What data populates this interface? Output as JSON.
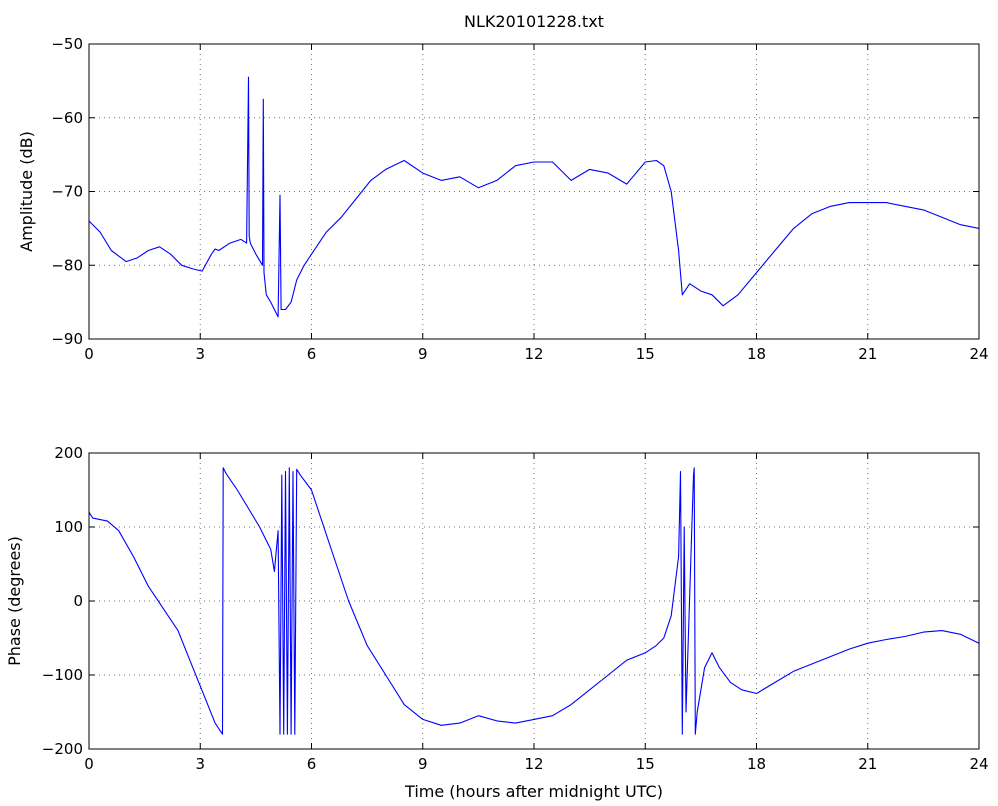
{
  "chart_data": [
    {
      "type": "line",
      "title": "NLK20101228.txt",
      "xlabel": "",
      "ylabel": "Amplitude (dB)",
      "xlim": [
        0,
        24
      ],
      "ylim": [
        -90,
        -50
      ],
      "xticks": [
        0,
        3,
        6,
        9,
        12,
        15,
        18,
        21,
        24
      ],
      "yticks": [
        -90,
        -80,
        -70,
        -60,
        -50
      ],
      "grid": true,
      "color": "#0000ff",
      "series": [
        {
          "name": "",
          "x": [
            0,
            0.3,
            0.6,
            1.0,
            1.3,
            1.6,
            1.9,
            2.2,
            2.5,
            2.8,
            3.05,
            3.3,
            3.4,
            3.5,
            3.8,
            4.1,
            4.25,
            4.3,
            4.32,
            4.35,
            4.5,
            4.68,
            4.7,
            4.72,
            4.78,
            4.9,
            5.0,
            5.1,
            5.15,
            5.18,
            5.3,
            5.45,
            5.6,
            5.8,
            6.0,
            6.4,
            6.8,
            7.2,
            7.6,
            8.0,
            8.5,
            9.0,
            9.5,
            10.0,
            10.5,
            11.0,
            11.5,
            12.0,
            12.5,
            13.0,
            13.5,
            14.0,
            14.5,
            15.0,
            15.3,
            15.5,
            15.7,
            15.9,
            16.0,
            16.2,
            16.5,
            16.8,
            17.1,
            17.5,
            18.0,
            18.5,
            19.0,
            19.5,
            20.0,
            20.5,
            21.0,
            21.5,
            22.0,
            22.5,
            23.0,
            23.5,
            24.0
          ],
          "y": [
            -74,
            -75.5,
            -78,
            -79.5,
            -79,
            -78,
            -77.5,
            -78.5,
            -80,
            -80.5,
            -80.8,
            -78.5,
            -77.8,
            -78,
            -77,
            -76.5,
            -77,
            -54.5,
            -76,
            -77,
            -78.5,
            -80,
            -57.5,
            -81,
            -84,
            -85,
            -86,
            -87,
            -70.5,
            -86,
            -86,
            -85,
            -82,
            -80,
            -78.5,
            -75.5,
            -73.5,
            -71,
            -68.5,
            -67,
            -65.8,
            -67.5,
            -68.5,
            -68,
            -69.5,
            -68.5,
            -66.5,
            -66,
            -66,
            -68.5,
            -67,
            -67.5,
            -69,
            -66,
            -65.8,
            -66.5,
            -70,
            -78,
            -84,
            -82.5,
            -83.5,
            -84,
            -85.5,
            -84,
            -81,
            -78,
            -75,
            -73,
            -72,
            -71.5,
            -71.5,
            -71.5,
            -72,
            -72.5,
            -73.5,
            -74.5,
            -75
          ]
        }
      ]
    },
    {
      "type": "line",
      "title": "",
      "xlabel": "Time (hours after midnight UTC)",
      "ylabel": "Phase (degrees)",
      "xlim": [
        0,
        24
      ],
      "ylim": [
        -200,
        200
      ],
      "xticks": [
        0,
        3,
        6,
        9,
        12,
        15,
        18,
        21,
        24
      ],
      "yticks": [
        -200,
        -100,
        0,
        100,
        200
      ],
      "grid": true,
      "color": "#0000ff",
      "series": [
        {
          "name": "",
          "x": [
            0,
            0.1,
            0.5,
            0.8,
            1.2,
            1.6,
            2.0,
            2.4,
            2.8,
            3.2,
            3.4,
            3.6,
            3.62,
            3.7,
            4.0,
            4.3,
            4.6,
            4.9,
            5.0,
            5.1,
            5.15,
            5.2,
            5.25,
            5.3,
            5.35,
            5.4,
            5.45,
            5.5,
            5.55,
            5.6,
            5.7,
            6.0,
            6.5,
            7.0,
            7.5,
            8.0,
            8.5,
            9.0,
            9.5,
            10.0,
            10.5,
            11.0,
            11.5,
            12.0,
            12.5,
            13.0,
            13.5,
            14.0,
            14.5,
            15.0,
            15.3,
            15.5,
            15.7,
            15.9,
            15.95,
            16.0,
            16.05,
            16.1,
            16.3,
            16.32,
            16.35,
            16.4,
            16.6,
            16.8,
            17.0,
            17.3,
            17.6,
            18.0,
            18.5,
            19.0,
            19.5,
            20.0,
            20.5,
            21.0,
            21.5,
            22.0,
            22.5,
            23.0,
            23.5,
            24.0
          ],
          "y": [
            120,
            112,
            108,
            95,
            60,
            20,
            -10,
            -40,
            -90,
            -140,
            -165,
            -180,
            180,
            172,
            150,
            125,
            100,
            70,
            40,
            95,
            -180,
            170,
            -180,
            175,
            -180,
            180,
            -180,
            175,
            -180,
            178,
            170,
            150,
            75,
            0,
            -60,
            -100,
            -140,
            -160,
            -168,
            -165,
            -155,
            -162,
            -165,
            -160,
            -155,
            -140,
            -120,
            -100,
            -80,
            -70,
            -60,
            -50,
            -20,
            60,
            175,
            -180,
            100,
            -150,
            170,
            180,
            -180,
            -150,
            -90,
            -70,
            -90,
            -110,
            -120,
            -125,
            -110,
            -95,
            -85,
            -75,
            -65,
            -57,
            -52,
            -48,
            -42,
            -40,
            -45,
            -57
          ]
        }
      ]
    }
  ]
}
